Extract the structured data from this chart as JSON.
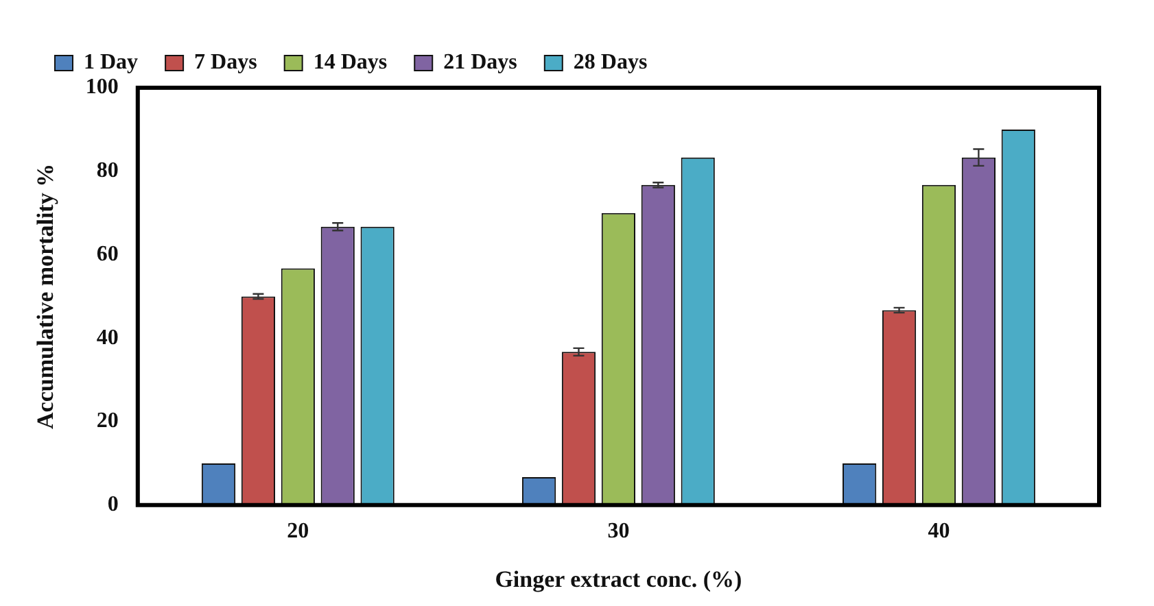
{
  "chart_data": {
    "type": "bar",
    "xlabel": "Ginger extract conc. (%)",
    "ylabel": "Accumulative mortality %",
    "categories": [
      "20",
      "30",
      "40"
    ],
    "series": [
      {
        "name": "1 Day",
        "color": "#4f81bd",
        "values": [
          10,
          6.7,
          10
        ]
      },
      {
        "name": "7 Days",
        "color": "#c0504d",
        "values": [
          50,
          36.7,
          46.7
        ],
        "errors": [
          0.6,
          0.9,
          0.6
        ]
      },
      {
        "name": "14 Days",
        "color": "#9bbb59",
        "values": [
          56.7,
          70,
          76.7
        ]
      },
      {
        "name": "21 Days",
        "color": "#8064a2",
        "values": [
          66.7,
          76.7,
          83.3
        ],
        "errors": [
          0.9,
          0.6,
          2
        ]
      },
      {
        "name": "28 Days",
        "color": "#4bacc6",
        "values": [
          66.7,
          83.3,
          90
        ]
      }
    ],
    "ylim": [
      0,
      100
    ],
    "yticks": [
      0,
      20,
      40,
      60,
      80,
      100
    ],
    "grid": false,
    "legend": "top"
  }
}
